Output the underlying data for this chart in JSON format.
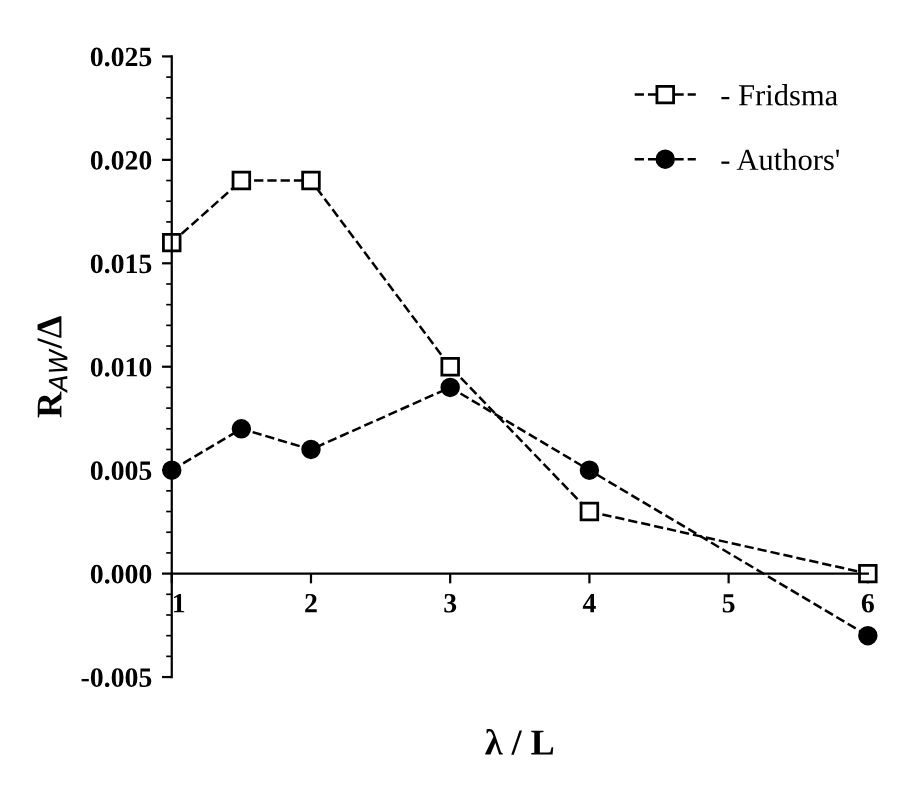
{
  "chart_data": {
    "type": "line",
    "xlabel": "λ / L",
    "ylabel": "R$_{AW}$/Δ",
    "x": [
      1,
      1.5,
      2,
      3,
      4,
      6
    ],
    "series": [
      {
        "name": "- Fridsma",
        "color": "#000000",
        "marker": "square",
        "values": [
          0.016,
          0.019,
          0.019,
          0.01,
          0.003,
          0.0
        ]
      },
      {
        "name": "- Authors'",
        "color": "#000000",
        "marker": "circle",
        "values": [
          0.005,
          0.007,
          0.006,
          0.009,
          0.005,
          -0.003
        ]
      }
    ],
    "xlim": [
      1,
      6
    ],
    "xticks": [
      1,
      2,
      3,
      4,
      5,
      6
    ],
    "ylim": [
      -0.005,
      0.025
    ],
    "yticks": [
      {
        "value": -0.005,
        "label": "-0.005"
      },
      {
        "value": 0,
        "label": "0.000"
      },
      {
        "value": 0.005,
        "label": "0.005"
      },
      {
        "value": 0.01,
        "label": "0.010"
      },
      {
        "value": 0.015,
        "label": "0.015"
      },
      {
        "value": 0.02,
        "label": "0.020"
      },
      {
        "value": 0.025,
        "label": "0.025"
      }
    ],
    "line_style": "dashed",
    "legend": "top right",
    "grid": false
  }
}
